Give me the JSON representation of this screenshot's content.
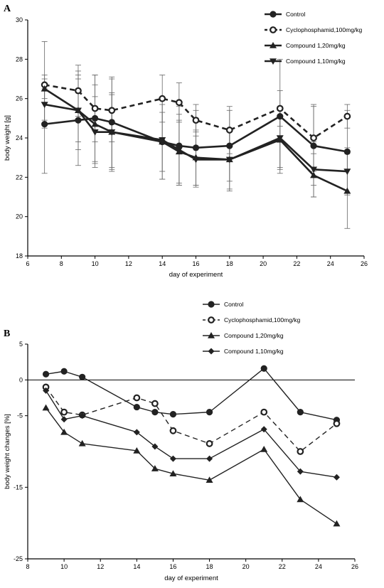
{
  "chart_data": [
    {
      "panel": "A",
      "type": "line",
      "xlabel": "day of experiment",
      "ylabel": "body weight [g]",
      "xlim": [
        6,
        26
      ],
      "ylim": [
        18,
        30
      ],
      "xticks": [
        6,
        8,
        10,
        12,
        14,
        16,
        18,
        20,
        22,
        24,
        26
      ],
      "yticks": [
        18,
        20,
        22,
        24,
        26,
        28,
        30
      ],
      "x": [
        7,
        9,
        10,
        11,
        14,
        15,
        16,
        18,
        21,
        23,
        25
      ],
      "legend_position": "top-right",
      "series": [
        {
          "name": "Control",
          "marker": "circle",
          "dashed": false,
          "values": [
            24.7,
            24.9,
            25.0,
            24.8,
            23.8,
            23.6,
            23.5,
            23.6,
            25.1,
            23.6,
            23.3
          ],
          "errors": [
            2.5,
            2.3,
            2.2,
            2.3,
            1.9,
            2.0,
            1.9,
            1.8,
            2.9,
            2.0,
            2.1
          ]
        },
        {
          "name": "Cyclophosphamid,100mg/kg",
          "marker": "open-circle",
          "dashed": true,
          "values": [
            26.7,
            26.4,
            25.5,
            25.4,
            26.0,
            25.8,
            24.9,
            24.4,
            25.5,
            24.0,
            25.1
          ],
          "errors": [
            2.2,
            1.3,
            1.7,
            1.6,
            1.2,
            1.0,
            0.8,
            1.2,
            0.9,
            1.7,
            0.6
          ]
        },
        {
          "name": "Compound 1,20mg/kg",
          "marker": "triangle-up",
          "dashed": false,
          "values": [
            26.5,
            25.4,
            24.7,
            24.3,
            23.8,
            23.3,
            23.0,
            22.9,
            23.9,
            22.1,
            21.3
          ],
          "errors": [
            0.5,
            1.6,
            2.0,
            2.0,
            1.5,
            1.6,
            1.4,
            1.5,
            1.5,
            1.1,
            1.9
          ]
        },
        {
          "name": "Compound 1,10mg/kg",
          "marker": "triangle-down",
          "dashed": false,
          "values": [
            25.7,
            25.4,
            24.3,
            24.3,
            23.9,
            23.4,
            22.9,
            22.9,
            24.0,
            22.4,
            22.3
          ],
          "errors": [
            0.8,
            2.0,
            1.8,
            1.9,
            2.0,
            1.8,
            1.4,
            1.6,
            1.5,
            1.4,
            1.2
          ]
        }
      ]
    },
    {
      "panel": "B",
      "type": "line",
      "xlabel": "day of experiment",
      "ylabel": "body weight changes [%]",
      "xlim": [
        8,
        26
      ],
      "ylim": [
        -25,
        5
      ],
      "xticks": [
        8,
        10,
        12,
        14,
        16,
        18,
        20,
        22,
        24,
        26
      ],
      "yticks": [
        -25,
        -15,
        -5,
        0,
        5
      ],
      "baseline": 0,
      "x": [
        9,
        10,
        11,
        14,
        15,
        16,
        18,
        21,
        23,
        25
      ],
      "legend_position": "top-right",
      "series": [
        {
          "name": "Control",
          "marker": "circle",
          "dashed": false,
          "values": [
            0.8,
            1.2,
            0.4,
            -3.8,
            -4.5,
            -4.8,
            -4.5,
            1.6,
            -4.5,
            -5.6
          ]
        },
        {
          "name": "Cyclophosphamid,100mg/kg",
          "marker": "open-circle",
          "dashed": true,
          "values": [
            -1.0,
            -4.5,
            -4.9,
            -2.5,
            -3.3,
            -7.1,
            -8.9,
            -4.5,
            -10.0,
            -6.1
          ]
        },
        {
          "name": "Compound 1,20mg/kg",
          "marker": "triangle-up",
          "dashed": false,
          "values": [
            -3.9,
            -7.3,
            -8.9,
            -9.9,
            -12.4,
            -13.1,
            -14.0,
            -9.7,
            -16.7,
            -20.1
          ]
        },
        {
          "name": "Compound 1,10mg/kg",
          "marker": "diamond",
          "dashed": false,
          "values": [
            -1.5,
            -5.5,
            -5.0,
            -7.3,
            -9.3,
            -11.0,
            -11.0,
            -6.9,
            -12.8,
            -13.6
          ]
        }
      ]
    }
  ]
}
